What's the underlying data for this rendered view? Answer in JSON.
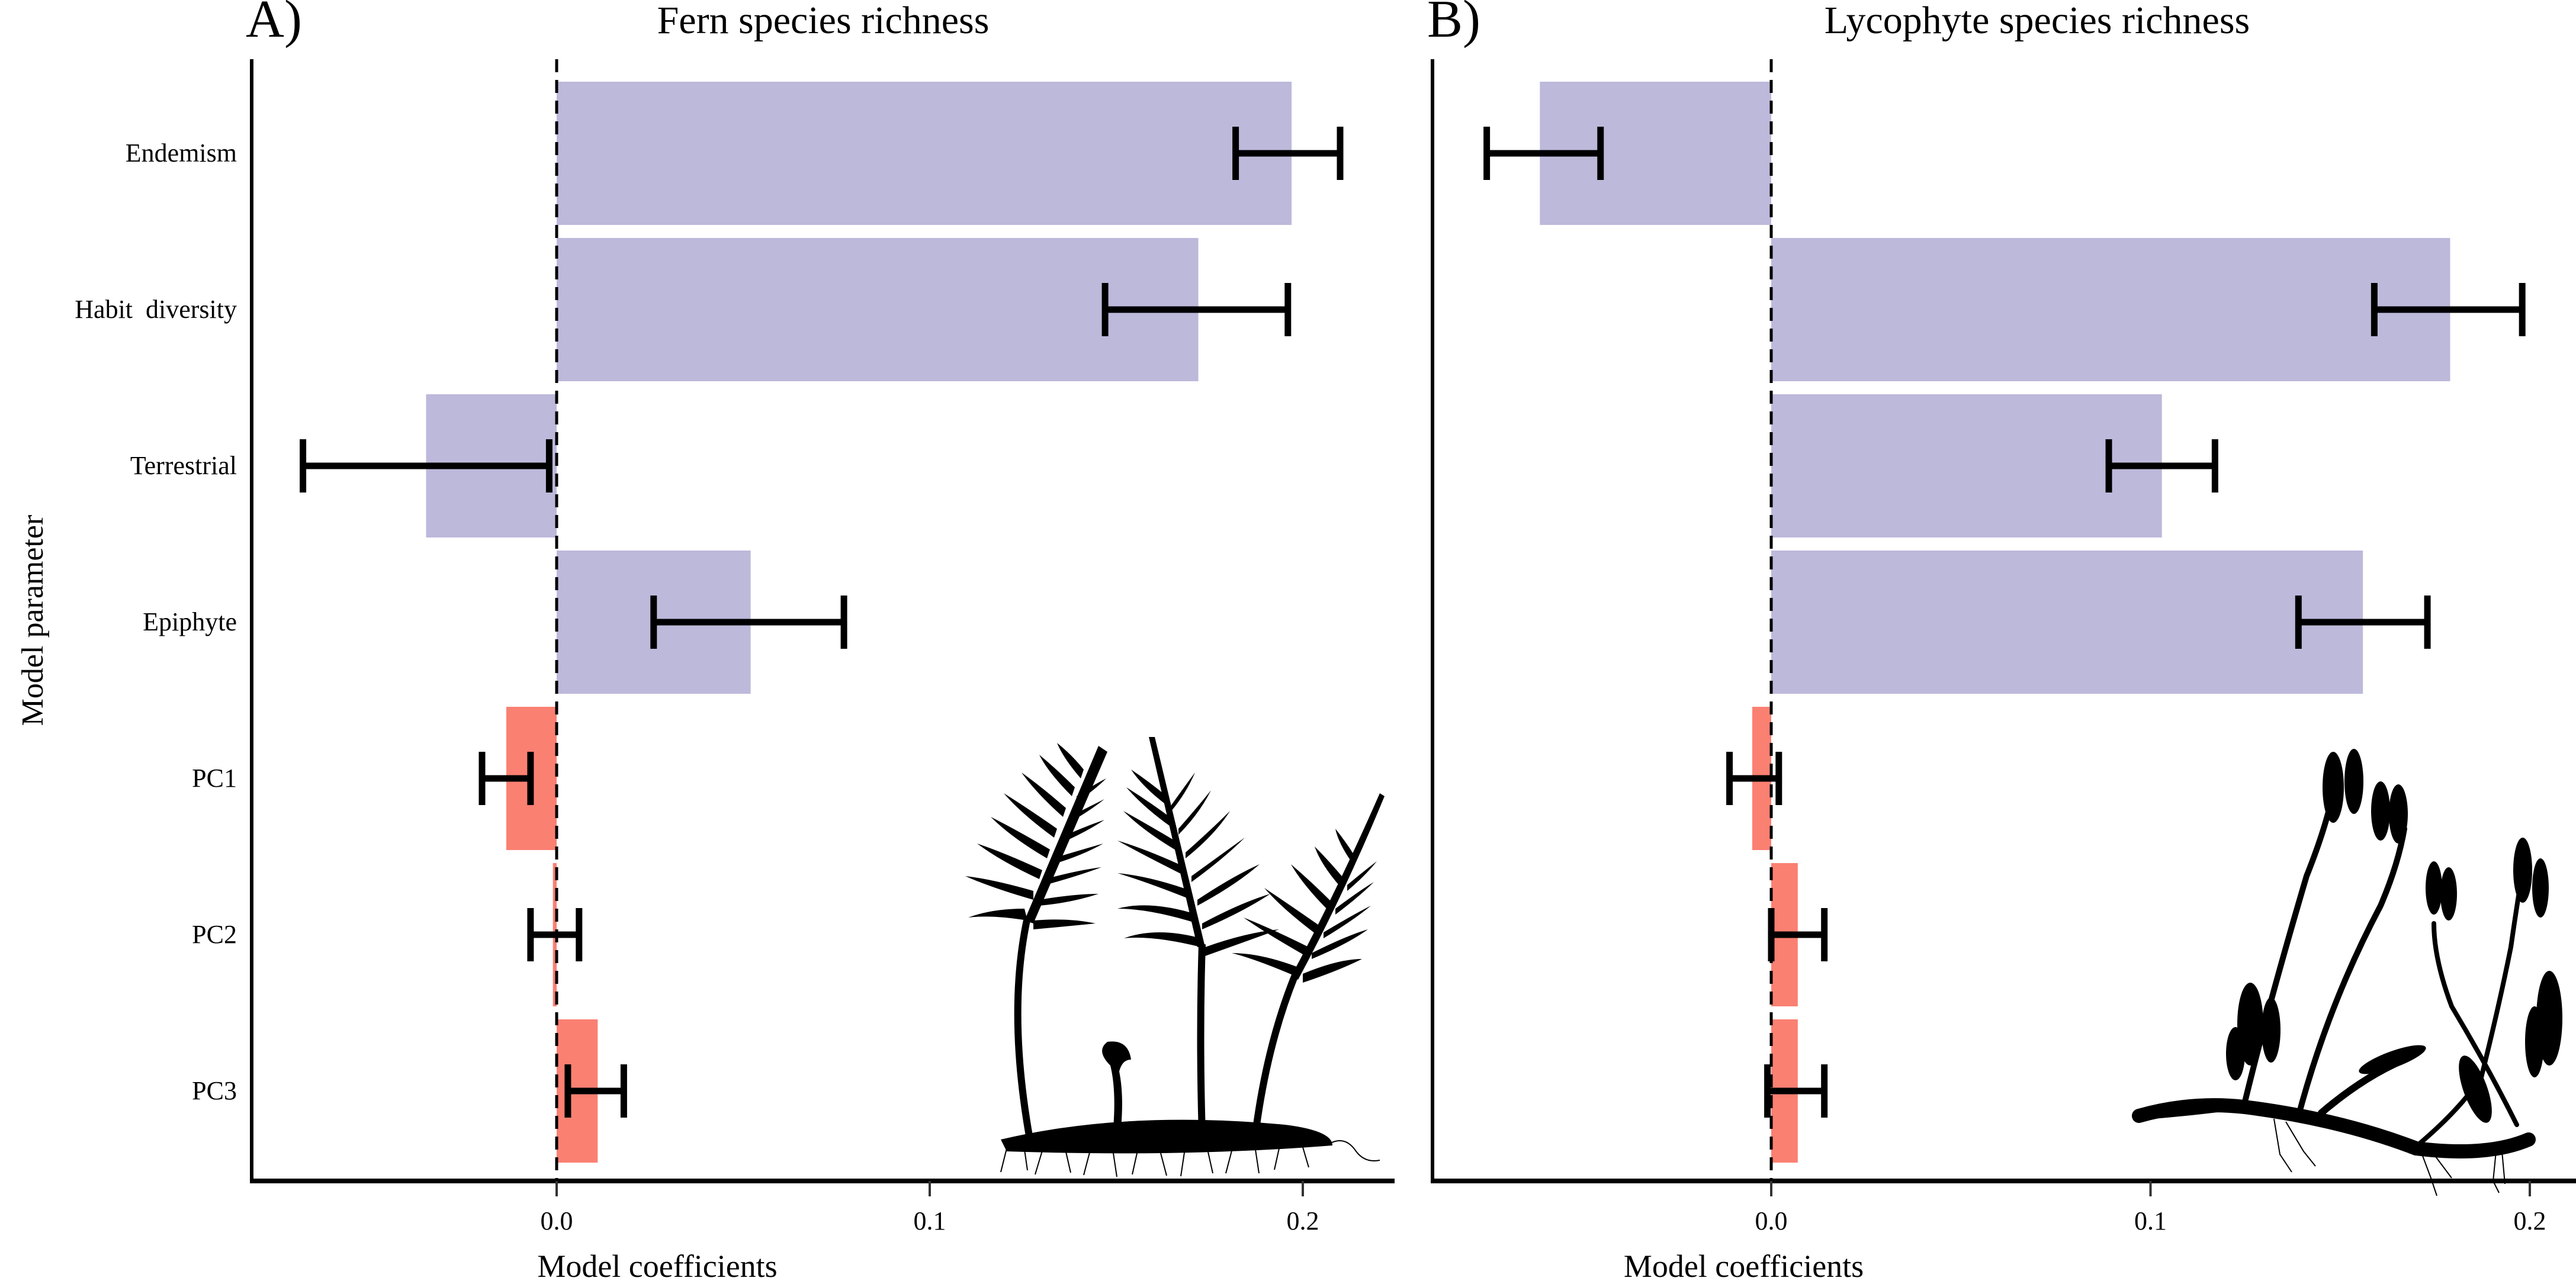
{
  "figure": {
    "ylabel": "Model parameter",
    "colors": {
      "trait_bar": "#BDB9DB",
      "climate_bar": "#FA8072",
      "errorbar": "#000000",
      "axis": "#000000"
    }
  },
  "chart_data": [
    {
      "type": "bar",
      "orientation": "horizontal",
      "panel_label": "A)",
      "title": "Fern species richness",
      "xlabel": "Model coefficients",
      "ylabel": "Model parameter",
      "categories": [
        "Endemism",
        "Habit  diversity",
        "Terrestrial",
        "Epiphyte",
        "PC1",
        "PC2",
        "PC3"
      ],
      "groups": [
        "trait",
        "trait",
        "trait",
        "trait",
        "climate",
        "climate",
        "climate"
      ],
      "values": [
        0.197,
        0.172,
        -0.035,
        0.052,
        -0.0135,
        -0.001,
        0.011
      ],
      "error_low": [
        0.182,
        0.147,
        -0.068,
        0.026,
        -0.02,
        -0.007,
        0.003
      ],
      "error_high": [
        0.21,
        0.196,
        -0.002,
        0.077,
        -0.007,
        0.006,
        0.018
      ],
      "xlim": [
        -0.082,
        0.225
      ],
      "xticks": [
        0.0,
        0.1,
        0.2
      ],
      "xtick_labels": [
        "0.0",
        "0.1",
        "0.2"
      ],
      "reference_line": 0,
      "illustration": "fern-silhouette"
    },
    {
      "type": "bar",
      "orientation": "horizontal",
      "panel_label": "B)",
      "title": "Lycophyte species richness",
      "xlabel": "Model coefficients",
      "ylabel": "",
      "categories": [
        "Endemism",
        "Habit  diversity",
        "Terrestrial",
        "Epiphyte",
        "PC1",
        "PC2",
        "PC3"
      ],
      "groups": [
        "trait",
        "trait",
        "trait",
        "trait",
        "climate",
        "climate",
        "climate"
      ],
      "values": [
        -0.061,
        0.179,
        0.103,
        0.156,
        -0.005,
        0.007,
        0.007
      ],
      "error_low": [
        -0.075,
        0.159,
        0.089,
        0.139,
        -0.011,
        0.0,
        -0.001
      ],
      "error_high": [
        -0.045,
        0.198,
        0.117,
        0.173,
        0.002,
        0.014,
        0.014
      ],
      "xlim": [
        -0.089,
        0.212
      ],
      "xticks": [
        0.0,
        0.1,
        0.2
      ],
      "xtick_labels": [
        "0.0",
        "0.1",
        "0.2"
      ],
      "reference_line": 0,
      "illustration": "lycophyte-silhouette"
    }
  ]
}
